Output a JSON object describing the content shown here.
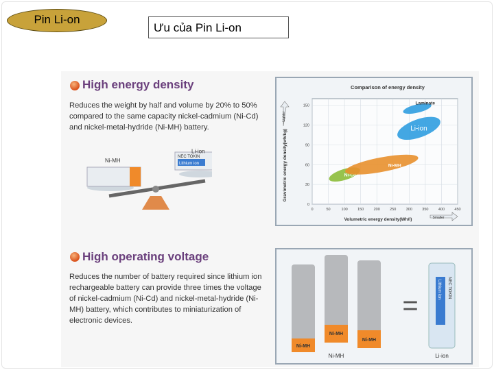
{
  "header": {
    "badge_label": "Pin Li-on",
    "title": "Ưu của Pin Li-on"
  },
  "section1": {
    "title": "High energy density",
    "text": "Reduces the weight by half and volume by 20% to 50% compared to the same capacity nickel-cadmium (Ni-Cd) and nickel-metal-hydride (Ni-MH) battery.",
    "scale": {
      "left_label": "Ni-MH",
      "right_label": "Li-ion",
      "brand": "NEC TOKIN",
      "brand_sub": "Lithium ion"
    }
  },
  "section2": {
    "title": "High operating voltage",
    "text": "Reduces the number of battery required since lithium ion rechargeable battery can provide three times the voltage of nickel-cadmium (Ni-Cd) and nickel-metal-hydride (Ni-MH) battery, which contributes to miniaturization of electronic devices.",
    "cells": [
      {
        "label": "Ni-MH"
      },
      {
        "label": "Ni-MH"
      },
      {
        "label": "Ni-MH"
      }
    ],
    "left_caption": "Ni-MH",
    "equals": "=",
    "liion_brand": "NEC TOKIN",
    "liion_sub": "Lithium ion",
    "right_caption": "Li-ion"
  },
  "chart_data": {
    "type": "scatter",
    "title": "Comparison of energy density",
    "xlabel": "Volumetric energy density(Wh/l)",
    "ylabel": "Gravimetric energy density(wh/kg)",
    "xlim": [
      0,
      450
    ],
    "ylim": [
      0,
      160
    ],
    "xticks": [
      "0",
      "50",
      "100",
      "150",
      "200",
      "250",
      "300",
      "350",
      "400",
      "450"
    ],
    "yticks": [
      "0",
      "30",
      "60",
      "90",
      "120",
      "150"
    ],
    "y_arrow_label": "Lighter",
    "x_arrow_label": "Smaller",
    "grid": true,
    "regions": [
      {
        "name": "Ni-Cd",
        "x_range": [
          50,
          150
        ],
        "y_range": [
          30,
          60
        ],
        "color": "#8cbc3a"
      },
      {
        "name": "Ni-MH",
        "x_range": [
          100,
          330
        ],
        "y_range": [
          40,
          80
        ],
        "color": "#e8902e"
      },
      {
        "name": "Li-ion",
        "x_range": [
          260,
          400
        ],
        "y_range": [
          90,
          140
        ],
        "color": "#2f9de0"
      },
      {
        "name": "Laminate",
        "x_range": [
          280,
          370
        ],
        "y_range": [
          135,
          155
        ],
        "color": "#2f9de0"
      }
    ]
  }
}
